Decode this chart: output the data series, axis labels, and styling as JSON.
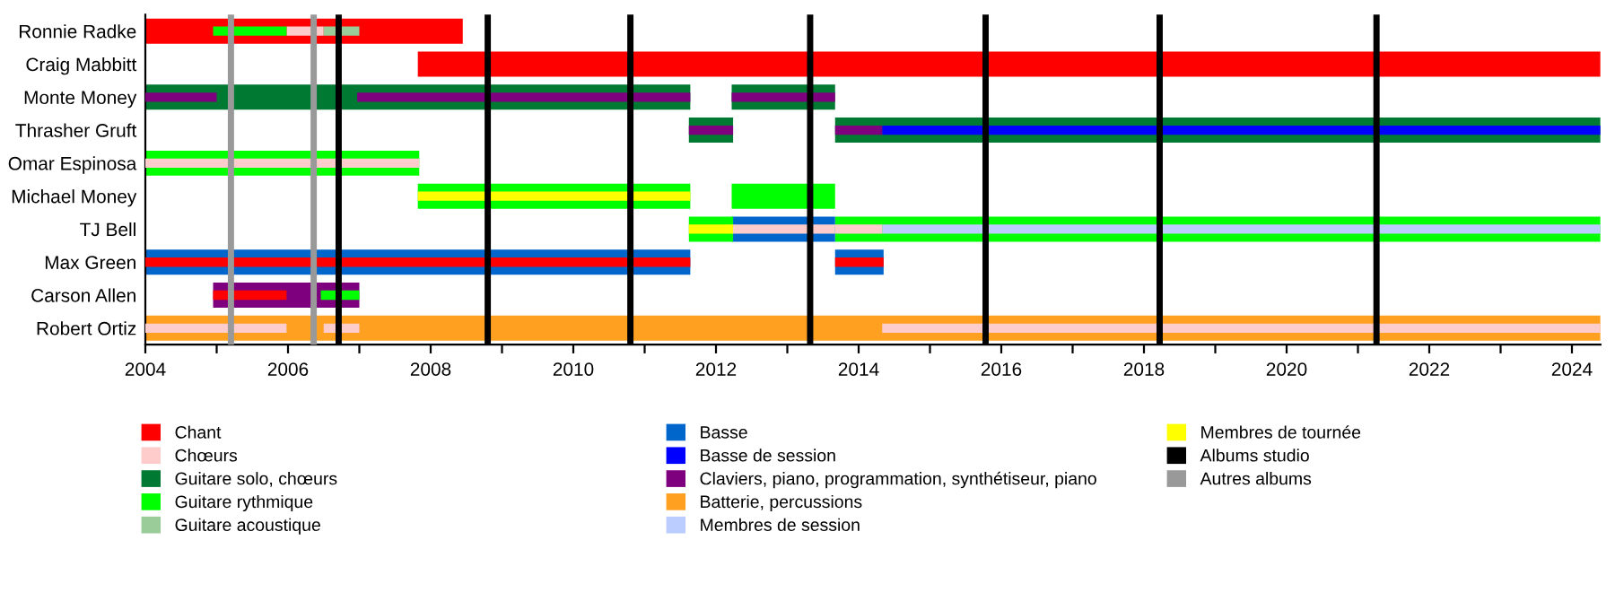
{
  "chart_data": {
    "type": "bar",
    "orientation": "horizontal",
    "legend": "bottom",
    "grid": false,
    "categories": [
      "Ronnie Radke",
      "Craig Mabbitt",
      "Monte Money",
      "Thrasher Gruft",
      "Omar Espinosa",
      "Michael Money",
      "TJ Bell",
      "Max Green",
      "Carson Allen",
      "Robert Ortiz"
    ],
    "xlim": [
      2004,
      2024.4
    ],
    "xticks": [
      2004,
      {
        "value": 2005,
        "label": null
      },
      2006,
      {
        "value": 2007,
        "label": null
      },
      2008,
      {
        "value": 2009,
        "label": null
      },
      2010,
      {
        "value": 2011,
        "label": null
      },
      2012,
      {
        "value": 2013,
        "label": null
      },
      2014,
      {
        "value": 2015,
        "label": null
      },
      2016,
      {
        "value": 2017,
        "label": null
      },
      2018,
      {
        "value": 2019,
        "label": null
      },
      2020,
      {
        "value": 2021,
        "label": null
      },
      2022,
      {
        "value": 2023,
        "label": null
      },
      2024
    ],
    "series": [
      {
        "name": "Chant",
        "color": "#ff0000",
        "values": [
          4.45,
          16.58,
          null,
          null,
          null,
          null,
          null,
          null,
          null,
          null
        ],
        "base": [
          2004,
          2007.82,
          null,
          null,
          null,
          null,
          null,
          null,
          null,
          null
        ]
      },
      {
        "name": "Chœurs",
        "color": "#ffcccc",
        "values": [
          0.52,
          null,
          null,
          null,
          null,
          null,
          null,
          null,
          null,
          1.98
        ],
        "base": [
          2005.98,
          null,
          null,
          null,
          null,
          null,
          null,
          null,
          null,
          2004
        ]
      },
      {
        "name": "Guitare solo, chœurs",
        "color": "#007a33",
        "values": [
          null,
          null,
          7.64,
          10.73,
          null,
          null,
          null,
          null,
          null,
          null
        ],
        "base": [
          null,
          null,
          2004,
          2013.67,
          null,
          null,
          null,
          null,
          null,
          null
        ]
      },
      {
        "name": "Guitare rythmique",
        "color": "#00ff00",
        "values": [
          null,
          null,
          null,
          null,
          3.84,
          3.82,
          10.73,
          null,
          null,
          null
        ],
        "base": [
          null,
          null,
          null,
          null,
          2004,
          2007.82,
          2013.67,
          null,
          null,
          null
        ]
      },
      {
        "name": "Guitare acoustique",
        "color": "#99cc99",
        "values": [
          0.5,
          null,
          null,
          null,
          null,
          null,
          null,
          null,
          null,
          null
        ],
        "base": [
          2006.5,
          null,
          null,
          null,
          null,
          null,
          null,
          null,
          null,
          null
        ]
      },
      {
        "name": "Basse",
        "color": "#0066cc",
        "values": [
          null,
          null,
          null,
          null,
          null,
          null,
          1.45,
          7.64,
          null,
          null
        ],
        "base": [
          null,
          null,
          null,
          null,
          null,
          null,
          2012.22,
          2004,
          null,
          null
        ]
      },
      {
        "name": "Basse de session",
        "color": "#0000ff",
        "values": [
          null,
          null,
          null,
          10.07,
          null,
          null,
          null,
          null,
          null,
          null
        ],
        "base": [
          null,
          null,
          null,
          2014.33,
          null,
          null,
          null,
          null,
          null,
          null
        ]
      },
      {
        "name": "Claviers, piano, programmation, synthétiseur, piano",
        "color": "#7f007f",
        "values": [
          null,
          null,
          4.67,
          null,
          null,
          null,
          null,
          null,
          2.05,
          null
        ],
        "base": [
          null,
          null,
          2006.97,
          null,
          null,
          null,
          null,
          null,
          2004.95,
          null
        ]
      },
      {
        "name": "Batterie, percussions",
        "color": "#ffa020",
        "values": [
          null,
          null,
          null,
          null,
          null,
          null,
          null,
          null,
          null,
          20.4
        ],
        "base": [
          null,
          null,
          null,
          null,
          null,
          null,
          null,
          null,
          null,
          2004
        ]
      },
      {
        "name": "Membres de session",
        "color": "#bbccff",
        "values": [
          null,
          null,
          null,
          null,
          null,
          null,
          10.07,
          null,
          null,
          null
        ],
        "base": [
          null,
          null,
          null,
          null,
          null,
          null,
          2014.33,
          null,
          null,
          null
        ]
      },
      {
        "name": "Membres de tournée",
        "color": "#ffff00",
        "values": [
          null,
          null,
          null,
          null,
          null,
          3.82,
          null,
          null,
          null,
          null
        ],
        "base": [
          null,
          null,
          null,
          null,
          null,
          2007.82,
          null,
          null,
          null,
          null
        ]
      },
      {
        "color": "#00ff00",
        "values": [
          1.03,
          null,
          null,
          null,
          null,
          1.45,
          0.62,
          null,
          0.54,
          null
        ],
        "base": [
          2004.95,
          null,
          null,
          null,
          null,
          2012.22,
          2011.62,
          null,
          2006.46,
          null
        ]
      },
      {
        "color": "#007a33",
        "values": [
          null,
          null,
          1.45,
          0.62,
          null,
          null,
          null,
          null,
          null,
          null
        ],
        "base": [
          null,
          null,
          2012.22,
          2011.62,
          null,
          null,
          null,
          null,
          null,
          null
        ]
      },
      {
        "color": "#0066cc",
        "values": [
          null,
          null,
          null,
          null,
          null,
          null,
          null,
          0.68,
          null,
          null
        ],
        "base": [
          null,
          null,
          null,
          null,
          null,
          null,
          null,
          2013.67,
          null,
          null
        ]
      },
      {
        "color": "#7f007f",
        "values": [
          null,
          null,
          1.0,
          0.62,
          null,
          null,
          null,
          null,
          null,
          null
        ],
        "base": [
          null,
          null,
          2004,
          2011.62,
          null,
          null,
          null,
          null,
          null,
          null
        ]
      },
      {
        "color": "#7f007f",
        "values": [
          null,
          null,
          1.45,
          0.66,
          null,
          null,
          null,
          null,
          null,
          null
        ],
        "base": [
          null,
          null,
          2012.22,
          2013.67,
          null,
          null,
          null,
          null,
          null,
          null
        ]
      },
      {
        "color": "#ff0000",
        "values": [
          null,
          null,
          null,
          null,
          null,
          null,
          null,
          7.64,
          1.03,
          null
        ],
        "base": [
          null,
          null,
          null,
          null,
          null,
          null,
          null,
          2004,
          2004.95,
          null
        ]
      },
      {
        "color": "#ff0000",
        "values": [
          null,
          null,
          null,
          null,
          null,
          null,
          null,
          0.68,
          null,
          null
        ],
        "base": [
          null,
          null,
          null,
          null,
          null,
          null,
          null,
          2013.67,
          null,
          null
        ]
      },
      {
        "color": "#ffcccc",
        "values": [
          null,
          null,
          null,
          null,
          3.84,
          null,
          1.45,
          null,
          null,
          0.5
        ],
        "base": [
          null,
          null,
          null,
          null,
          2004,
          null,
          2012.22,
          null,
          null,
          2006.5
        ]
      },
      {
        "color": "#ffcccc",
        "values": [
          null,
          null,
          null,
          null,
          null,
          null,
          0.66,
          null,
          null,
          10.07
        ],
        "base": [
          null,
          null,
          null,
          null,
          null,
          null,
          2013.67,
          null,
          null,
          2014.33
        ]
      },
      {
        "color": "#ffff00",
        "values": [
          null,
          null,
          null,
          null,
          null,
          null,
          0.62,
          null,
          null,
          null
        ],
        "base": [
          null,
          null,
          null,
          null,
          null,
          null,
          2011.62,
          null,
          null,
          null
        ]
      }
    ],
    "ref_lines": [
      {
        "axis": "x",
        "value": 2006.71,
        "label": "Albums studio",
        "color": "#000000"
      },
      {
        "axis": "x",
        "value": 2008.8,
        "color": "#000000"
      },
      {
        "axis": "x",
        "value": 2010.8,
        "color": "#000000"
      },
      {
        "axis": "x",
        "value": 2013.32,
        "color": "#000000"
      },
      {
        "axis": "x",
        "value": 2015.78,
        "color": "#000000"
      },
      {
        "axis": "x",
        "value": 2018.22,
        "color": "#000000"
      },
      {
        "axis": "x",
        "value": 2021.26,
        "color": "#000000"
      },
      {
        "axis": "x",
        "value": 2005.2,
        "label": "Autres albums",
        "color": "#999999"
      },
      {
        "axis": "x",
        "value": 2006.36,
        "color": "#999999"
      }
    ]
  }
}
